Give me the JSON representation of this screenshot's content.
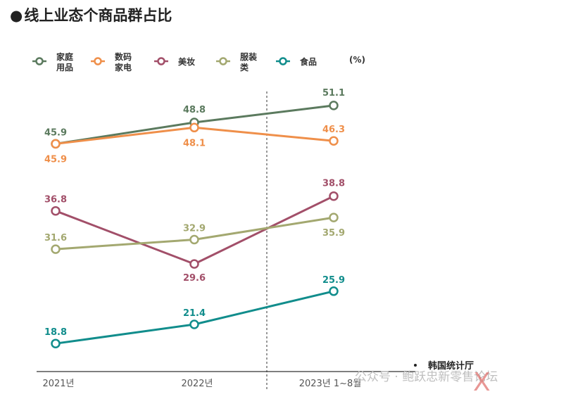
{
  "title": "线上业态个商品群占比",
  "unit": "(%)",
  "source": "韩国统计厅",
  "watermark": "公众号 · 鲍跃忠新零售论坛",
  "watermark_logo": "X",
  "chart_data": {
    "type": "line",
    "x": [
      "2021년",
      "2022년",
      "2023년 1~8월"
    ],
    "series": [
      {
        "name": "家庭用品",
        "legend_lines": [
          "家庭",
          "用品"
        ],
        "values": [
          45.9,
          48.8,
          51.1
        ],
        "color": "#5b7a5e"
      },
      {
        "name": "数码家电",
        "legend_lines": [
          "数码",
          "家电"
        ],
        "values": [
          45.9,
          48.1,
          46.3
        ],
        "color": "#ef8f4a"
      },
      {
        "name": "美妆",
        "legend_lines": [
          "美妆"
        ],
        "values": [
          36.8,
          29.6,
          38.8
        ],
        "color": "#a24f69"
      },
      {
        "name": "服装类",
        "legend_lines": [
          "服装",
          "类"
        ],
        "values": [
          31.6,
          32.9,
          35.9
        ],
        "color": "#a3a870"
      },
      {
        "name": "食品",
        "legend_lines": [
          "食品"
        ],
        "values": [
          18.8,
          21.4,
          25.9
        ],
        "color": "#118d8c"
      }
    ],
    "ylim": [
      15,
      53
    ],
    "grid": false,
    "legend_position": "top"
  }
}
